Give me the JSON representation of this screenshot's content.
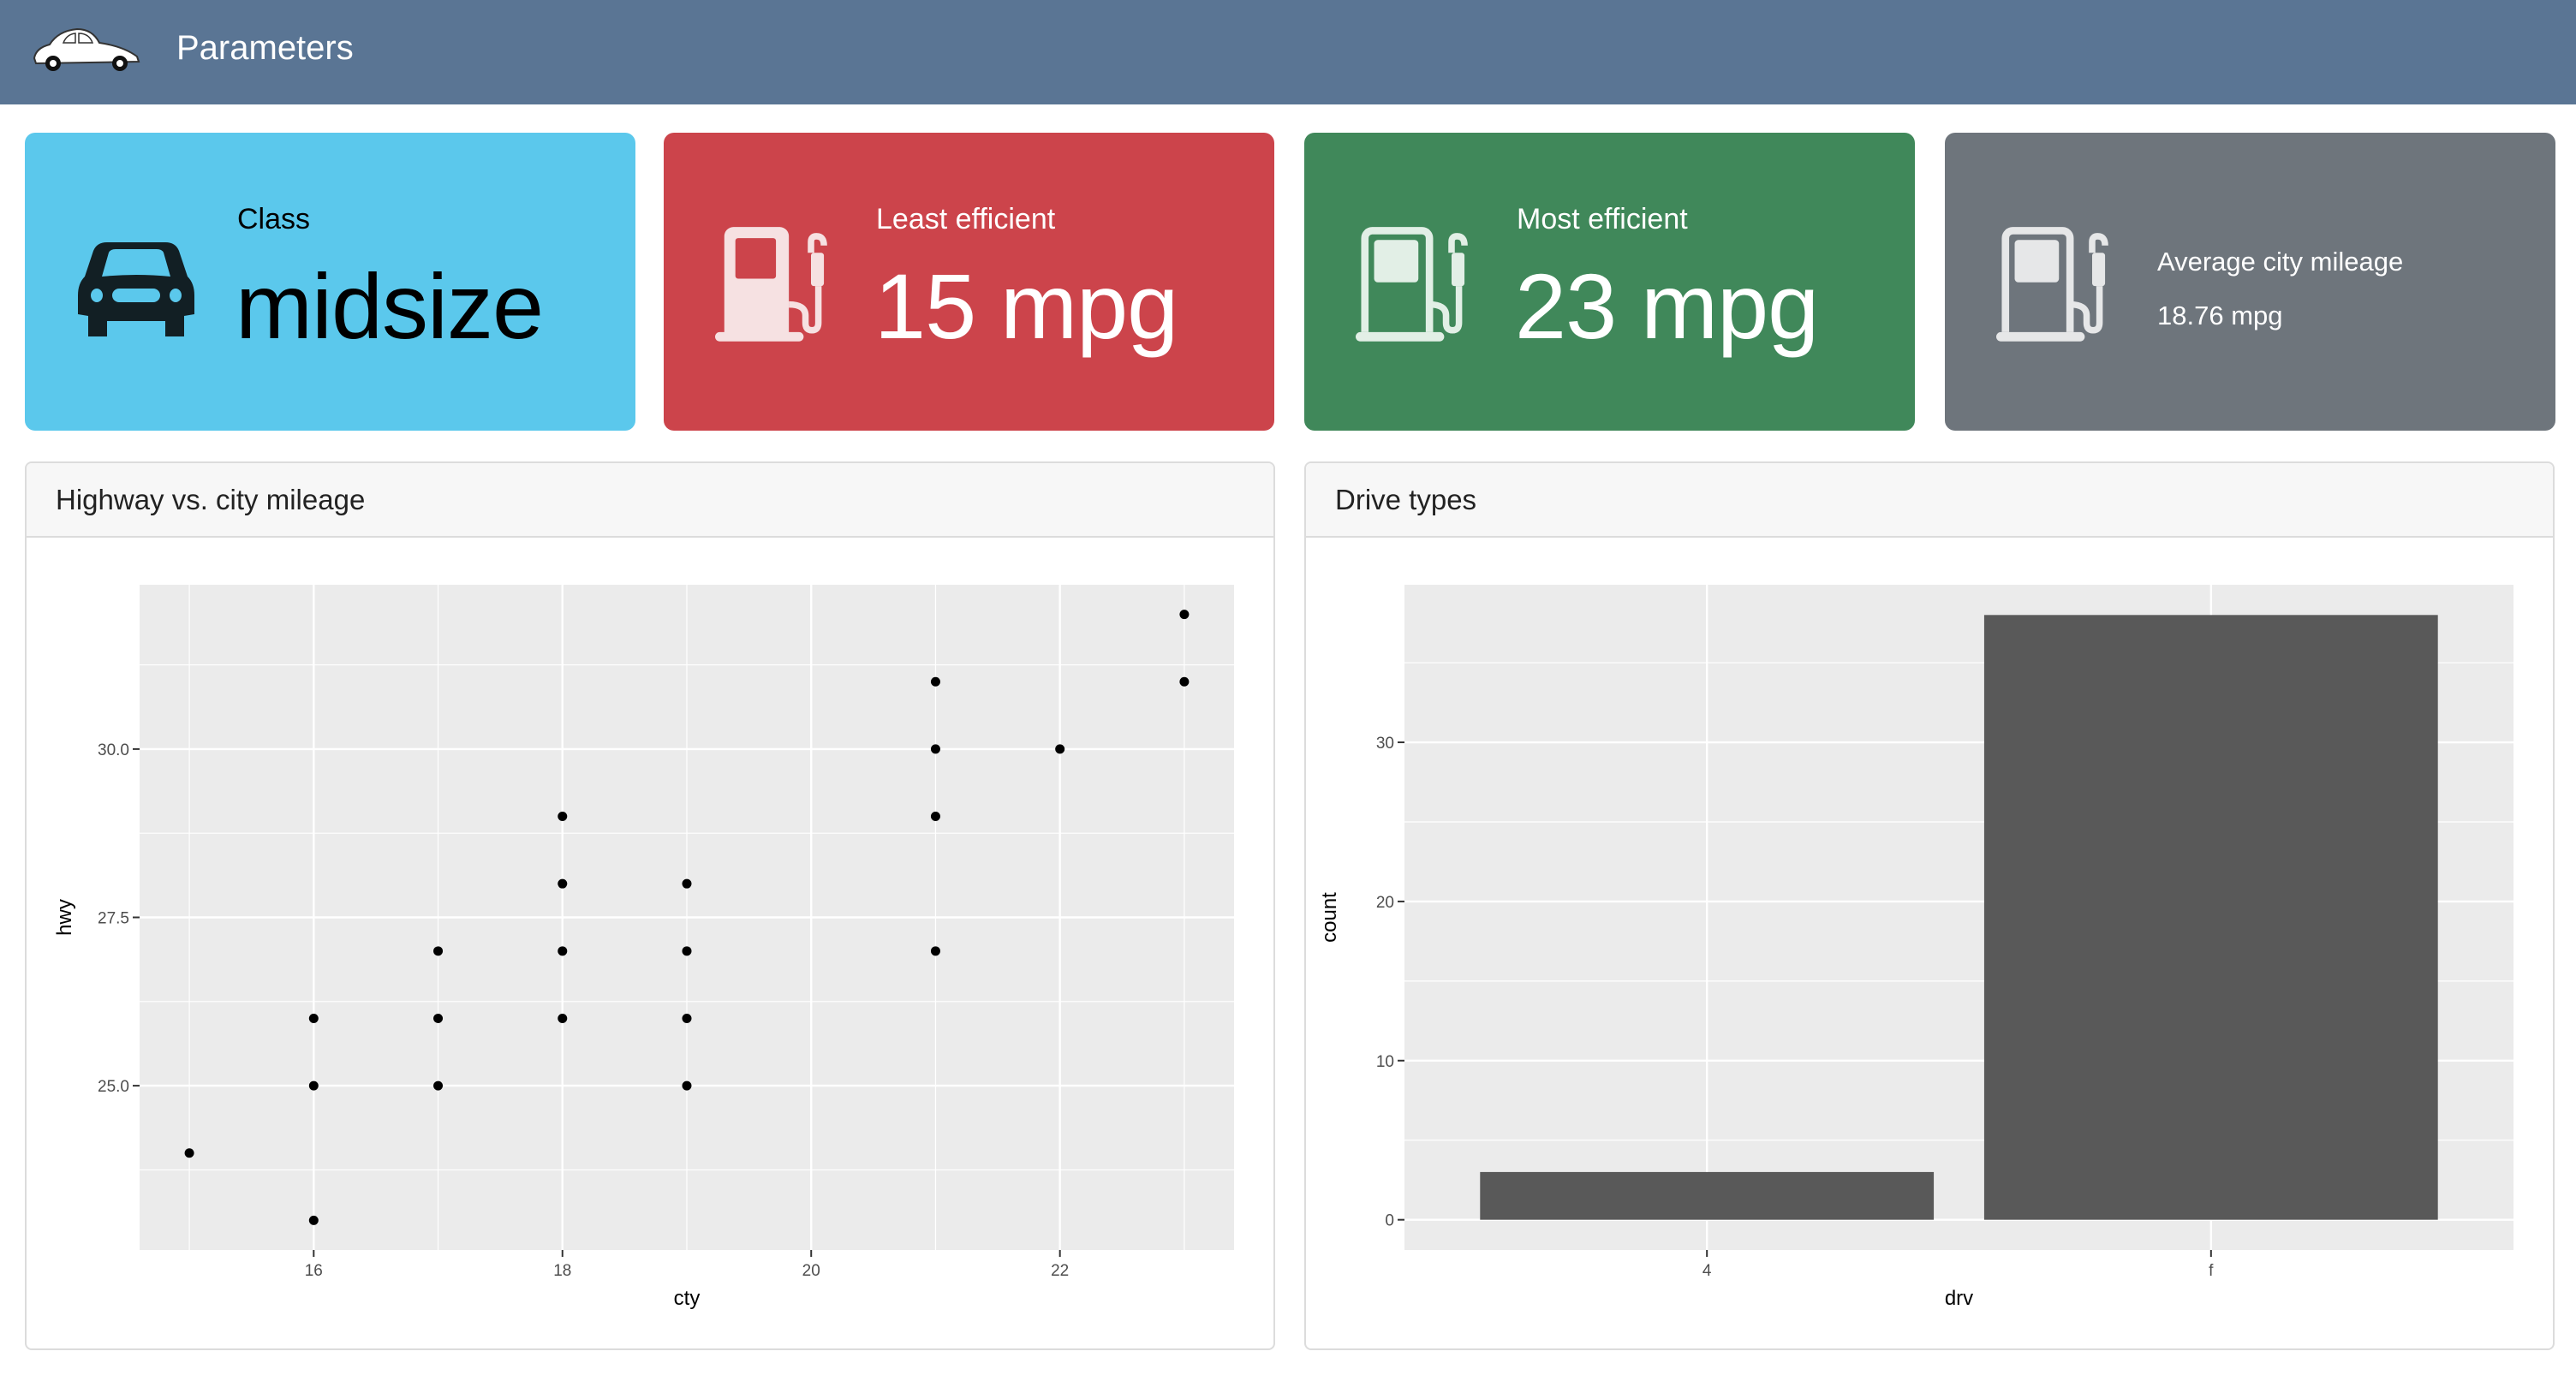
{
  "header": {
    "title": "Parameters",
    "logo": "beetle-car-logo"
  },
  "value_boxes": [
    {
      "caption": "Class",
      "value": "midsize",
      "icon": "car-icon",
      "color": "#5bc8ec",
      "text_color": "#000000"
    },
    {
      "caption": "Least efficient",
      "value": "15 mpg",
      "icon": "gas-pump-icon",
      "color": "#cc444b",
      "text_color": "#ffffff"
    },
    {
      "caption": "Most efficient",
      "value": "23 mpg",
      "icon": "gas-pump-icon",
      "color": "#40885a",
      "text_color": "#ffffff"
    },
    {
      "caption": "Average city mileage",
      "value": "18.76 mpg",
      "icon": "gas-pump-icon",
      "color": "#6e757c",
      "text_color": "#ffffff"
    }
  ],
  "cards": [
    {
      "title": "Highway vs. city mileage"
    },
    {
      "title": "Drive types"
    }
  ],
  "chart_data": [
    {
      "type": "scatter",
      "xlabel": "cty",
      "ylabel": "hwy",
      "xlim": [
        14.6,
        23.4
      ],
      "ylim": [
        22.56,
        32.44
      ],
      "xticks": [
        16,
        18,
        20,
        22
      ],
      "xtick_labels": [
        "16",
        "18",
        "20",
        "22"
      ],
      "yticks": [
        25,
        27.5,
        30
      ],
      "ytick_labels": [
        "25.0",
        "27.5",
        "30.0"
      ],
      "grid": true,
      "points": [
        [
          15,
          24
        ],
        [
          16,
          23
        ],
        [
          16,
          25
        ],
        [
          16,
          26
        ],
        [
          17,
          25
        ],
        [
          17,
          26
        ],
        [
          17,
          27
        ],
        [
          18,
          26
        ],
        [
          18,
          27
        ],
        [
          18,
          28
        ],
        [
          18,
          29
        ],
        [
          19,
          25
        ],
        [
          19,
          26
        ],
        [
          19,
          27
        ],
        [
          19,
          28
        ],
        [
          21,
          27
        ],
        [
          21,
          29
        ],
        [
          21,
          30
        ],
        [
          21,
          31
        ],
        [
          22,
          30
        ],
        [
          23,
          31
        ],
        [
          23,
          32
        ]
      ]
    },
    {
      "type": "bar",
      "xlabel": "drv",
      "ylabel": "count",
      "categories": [
        "4",
        "f"
      ],
      "values": [
        3,
        38
      ],
      "ylim": [
        -1.9,
        39.9
      ],
      "yticks": [
        0,
        10,
        20,
        30
      ],
      "ytick_labels": [
        "0",
        "10",
        "20",
        "30"
      ],
      "grid": true,
      "bar_color": "#595959"
    }
  ]
}
